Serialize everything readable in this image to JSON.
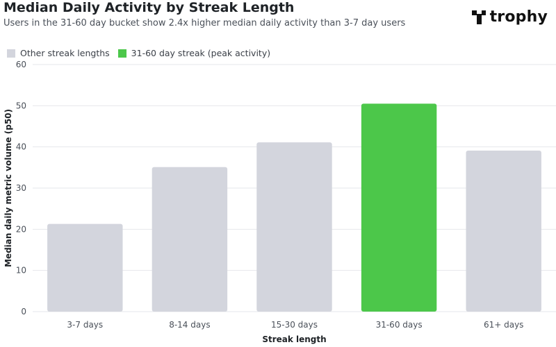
{
  "header": {
    "title": "Median Daily Activity by Streak Length",
    "subtitle": "Users in the 31-60 day bucket show 2.4x higher median daily activity than 3-7 day users",
    "logo_text": "trophy"
  },
  "legend": [
    {
      "label": "Other streak lengths",
      "color": "#d3d5dd"
    },
    {
      "label": "31-60 day streak (peak activity)",
      "color": "#4cc74a"
    }
  ],
  "chart_data": {
    "type": "bar",
    "categories": [
      "3-7 days",
      "8-14 days",
      "15-30 days",
      "31-60 days",
      "61+ days"
    ],
    "values": [
      21.3,
      35.1,
      41.1,
      50.5,
      39.1
    ],
    "highlight": [
      false,
      false,
      false,
      true,
      false
    ],
    "colors": {
      "default": "#d3d5dd",
      "highlight": "#4cc74a"
    },
    "xlabel": "Streak length",
    "ylabel": "Median daily metric volume (p50)",
    "ylim": [
      0,
      60
    ],
    "yticks": [
      0,
      10,
      20,
      30,
      40,
      50,
      60
    ],
    "grid": true,
    "legend_position": "top-left"
  }
}
